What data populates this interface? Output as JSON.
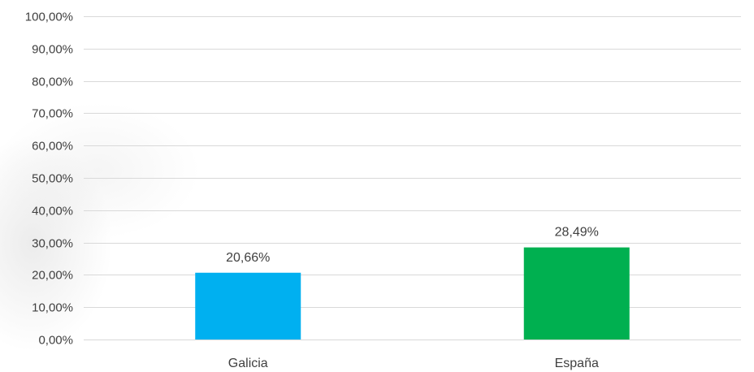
{
  "chart_data": {
    "type": "bar",
    "title": "",
    "xlabel": "",
    "ylabel": "",
    "categories": [
      "Galicia",
      "España"
    ],
    "values": [
      20.66,
      28.49
    ],
    "value_labels": [
      "20,66%",
      "28,49%"
    ],
    "bar_colors": [
      "#00b0f0",
      "#00b050"
    ],
    "ylim": [
      0,
      100
    ],
    "y_ticks": [
      0,
      10,
      20,
      30,
      40,
      50,
      60,
      70,
      80,
      90,
      100
    ],
    "y_tick_labels": [
      "0,00%",
      "10,00%",
      "20,00%",
      "30,00%",
      "40,00%",
      "50,00%",
      "60,00%",
      "70,00%",
      "80,00%",
      "90,00%",
      "100,00%"
    ],
    "grid": true,
    "legend": "none"
  }
}
